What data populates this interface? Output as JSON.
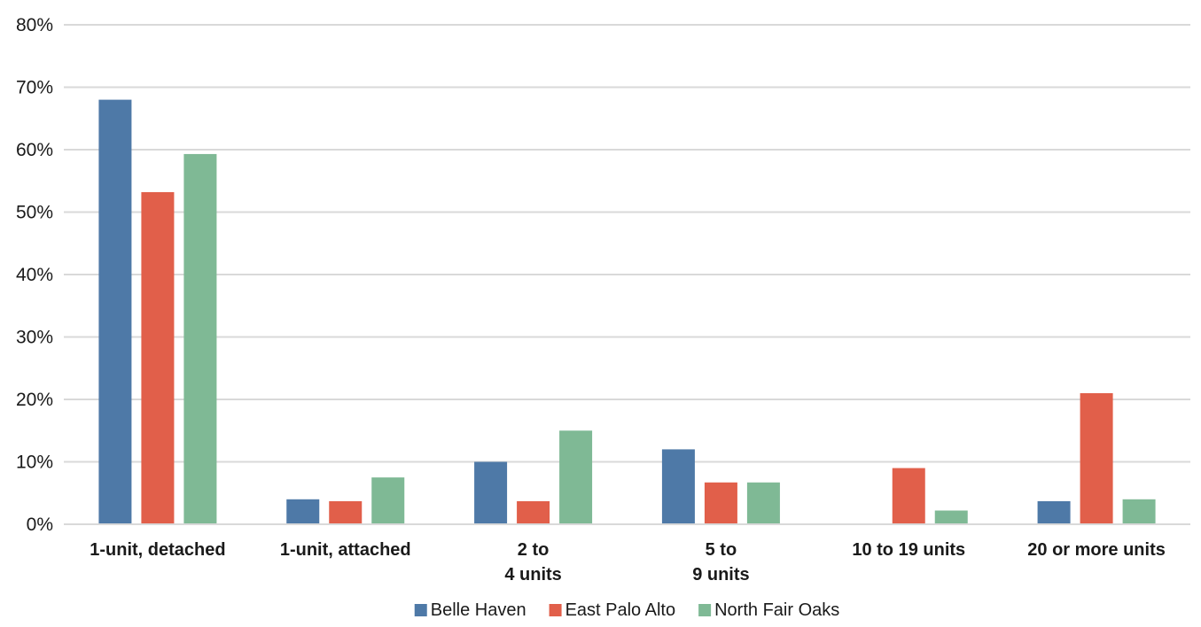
{
  "chart_data": {
    "type": "bar",
    "title": "",
    "xlabel": "",
    "ylabel": "",
    "ylim": [
      0,
      80
    ],
    "yticks": [
      "0%",
      "10%",
      "20%",
      "30%",
      "40%",
      "50%",
      "60%",
      "70%",
      "80%"
    ],
    "y_step": 10,
    "grid": true,
    "legend_position": "bottom",
    "categories": [
      [
        "1-unit, detached"
      ],
      [
        "1-unit, attached"
      ],
      [
        "2 to",
        "4 units"
      ],
      [
        "5 to",
        "9 units"
      ],
      [
        "10 to 19 units"
      ],
      [
        "20 or more units"
      ]
    ],
    "series": [
      {
        "name": "Belle Haven",
        "color": "#4e79a7",
        "values": [
          68.0,
          4.0,
          10.0,
          12.0,
          0.0,
          3.7
        ]
      },
      {
        "name": "East Palo Alto",
        "color": "#e15f4a",
        "values": [
          53.2,
          3.7,
          3.7,
          6.7,
          9.0,
          21.0
        ]
      },
      {
        "name": "North Fair Oaks",
        "color": "#7fb995",
        "values": [
          59.3,
          7.5,
          15.0,
          6.7,
          2.2,
          4.0
        ]
      }
    ]
  }
}
